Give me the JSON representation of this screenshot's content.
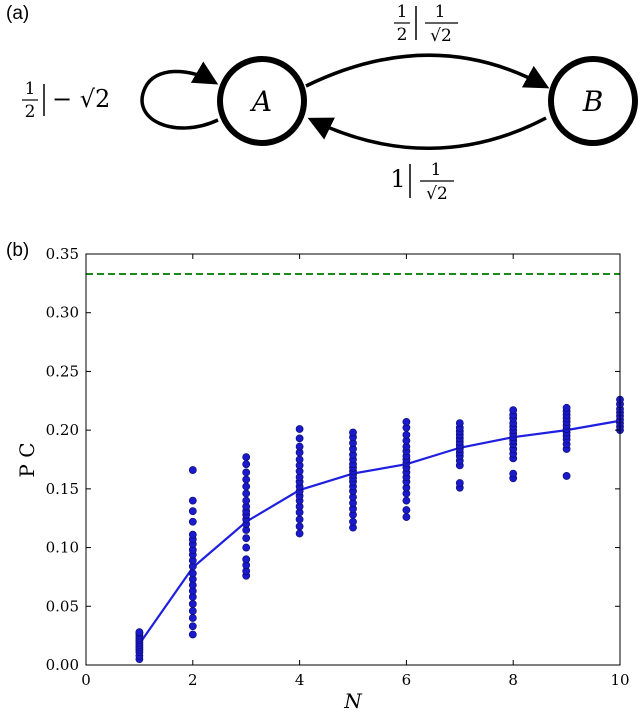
{
  "panel_a": {
    "label": "(a)",
    "nodes": [
      {
        "id": "A",
        "label": "A"
      },
      {
        "id": "B",
        "label": "B"
      }
    ],
    "edges": {
      "self_loop": {
        "coef_num": "1",
        "coef_den": "2",
        "weight": "− √2"
      },
      "a_to_b": {
        "coef_num": "1",
        "coef_den": "2",
        "weight_num": "1",
        "weight_den": "√2"
      },
      "b_to_a": {
        "coef": "1",
        "weight_num": "1",
        "weight_den": "√2"
      }
    }
  },
  "panel_b": {
    "label": "(b)"
  },
  "chart_data": {
    "type": "scatter",
    "xlabel": "N",
    "ylabel": "P C",
    "xlim": [
      0,
      10
    ],
    "ylim": [
      0,
      0.35
    ],
    "xticks": [
      "0",
      "2",
      "4",
      "6",
      "8",
      "10"
    ],
    "yticks": [
      "0.00",
      "0.05",
      "0.10",
      "0.15",
      "0.20",
      "0.25",
      "0.30",
      "0.35"
    ],
    "grid": false,
    "colors": {
      "points": "#1a1acc",
      "line": "#1f1fe0",
      "reference": "#1a8a1a"
    },
    "reference_line": {
      "y": 0.333,
      "style": "dashed"
    },
    "mean_line": {
      "x": [
        1,
        2,
        3,
        4,
        5,
        6,
        7,
        8,
        9,
        10
      ],
      "y": [
        0.018,
        0.083,
        0.122,
        0.149,
        0.163,
        0.171,
        0.185,
        0.194,
        0.2,
        0.208
      ]
    },
    "scatter": [
      {
        "x": 1,
        "y": [
          0.005,
          0.008,
          0.011,
          0.013,
          0.015,
          0.017,
          0.019,
          0.021,
          0.023,
          0.025,
          0.027,
          0.028
        ]
      },
      {
        "x": 2,
        "y": [
          0.026,
          0.033,
          0.04,
          0.046,
          0.052,
          0.058,
          0.063,
          0.068,
          0.073,
          0.078,
          0.084,
          0.089,
          0.094,
          0.098,
          0.103,
          0.107,
          0.111,
          0.122,
          0.131,
          0.14,
          0.166
        ]
      },
      {
        "x": 3,
        "y": [
          0.076,
          0.08,
          0.085,
          0.09,
          0.1,
          0.108,
          0.115,
          0.12,
          0.124,
          0.128,
          0.131,
          0.135,
          0.14,
          0.146,
          0.152,
          0.158,
          0.164,
          0.171,
          0.177
        ]
      },
      {
        "x": 4,
        "y": [
          0.112,
          0.118,
          0.124,
          0.13,
          0.135,
          0.14,
          0.144,
          0.148,
          0.152,
          0.156,
          0.16,
          0.165,
          0.17,
          0.175,
          0.181,
          0.186,
          0.193,
          0.201
        ]
      },
      {
        "x": 5,
        "y": [
          0.117,
          0.122,
          0.128,
          0.133,
          0.138,
          0.143,
          0.148,
          0.152,
          0.156,
          0.159,
          0.162,
          0.165,
          0.168,
          0.171,
          0.175,
          0.179,
          0.184,
          0.189,
          0.194,
          0.198
        ]
      },
      {
        "x": 6,
        "y": [
          0.126,
          0.132,
          0.14,
          0.146,
          0.151,
          0.156,
          0.16,
          0.164,
          0.168,
          0.172,
          0.175,
          0.178,
          0.182,
          0.186,
          0.191,
          0.196,
          0.202,
          0.207
        ]
      },
      {
        "x": 7,
        "y": [
          0.151,
          0.155,
          0.17,
          0.174,
          0.178,
          0.181,
          0.184,
          0.187,
          0.19,
          0.193,
          0.196,
          0.199,
          0.202,
          0.206
        ]
      },
      {
        "x": 8,
        "y": [
          0.159,
          0.163,
          0.176,
          0.18,
          0.184,
          0.188,
          0.191,
          0.194,
          0.197,
          0.2,
          0.203,
          0.206,
          0.21,
          0.213,
          0.217
        ]
      },
      {
        "x": 9,
        "y": [
          0.161,
          0.184,
          0.188,
          0.192,
          0.195,
          0.198,
          0.201,
          0.204,
          0.207,
          0.21,
          0.213,
          0.216,
          0.219
        ]
      },
      {
        "x": 10,
        "y": [
          0.2,
          0.203,
          0.206,
          0.209,
          0.212,
          0.215,
          0.218,
          0.222,
          0.226
        ]
      }
    ]
  }
}
